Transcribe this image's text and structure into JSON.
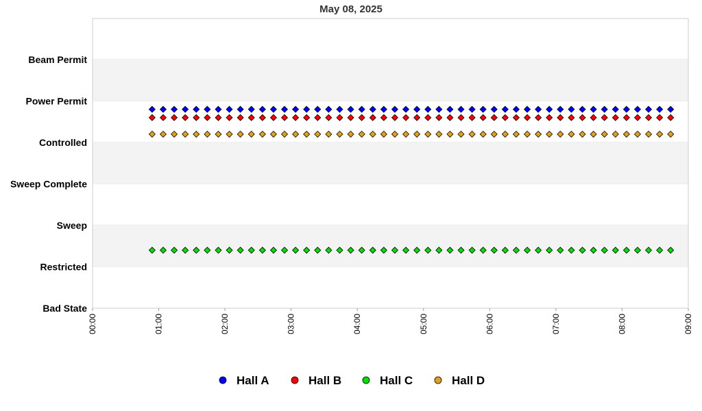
{
  "chart_data": {
    "type": "scatter",
    "title": "May 08, 2025",
    "xlabel": "",
    "ylabel": "",
    "x_ticks": [
      "00:00",
      "01:00",
      "02:00",
      "03:00",
      "04:00",
      "05:00",
      "06:00",
      "07:00",
      "08:00",
      "09:00"
    ],
    "xlim": [
      "00:00",
      "09:00"
    ],
    "y_categories": [
      "Bad State",
      "Restricted",
      "Sweep",
      "Sweep Complete",
      "Controlled",
      "Power Permit",
      "Beam Permit"
    ],
    "grid": "alternating horizontal bands",
    "legend_position": "bottom",
    "series": [
      {
        "name": "Hall A",
        "color": "#0000ff",
        "y": 4.8,
        "x_start": "00:54",
        "x_end": "08:45",
        "interval_minutes": 10
      },
      {
        "name": "Hall B",
        "color": "#ff0000",
        "y": 4.6,
        "x_start": "00:54",
        "x_end": "08:45",
        "interval_minutes": 10
      },
      {
        "name": "Hall C",
        "color": "#00e000",
        "y": 1.4,
        "x_start": "00:54",
        "x_end": "08:45",
        "interval_minutes": 10
      },
      {
        "name": "Hall D",
        "color": "#e0a020",
        "y": 4.2,
        "x_start": "00:54",
        "x_end": "08:45",
        "interval_minutes": 10
      }
    ]
  }
}
